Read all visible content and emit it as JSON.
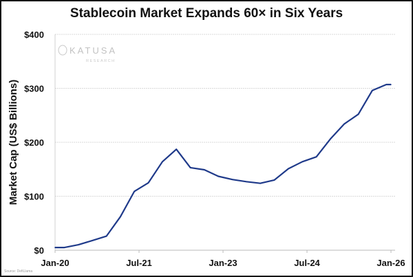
{
  "chart_data": {
    "type": "line",
    "title": "Stablecoin Market Expands 60× in Six Years",
    "xlabel": "",
    "ylabel": "Market Cap (US$ Billions)",
    "x_unit": "months since Jan-2020",
    "xlim": [
      0,
      72
    ],
    "ylim": [
      0,
      400
    ],
    "x_ticks": [
      {
        "value": 0,
        "label": "Jan-20"
      },
      {
        "value": 18,
        "label": "Jul-21"
      },
      {
        "value": 36,
        "label": "Jan-23"
      },
      {
        "value": 54,
        "label": "Jul-24"
      },
      {
        "value": 72,
        "label": "Jan-26"
      }
    ],
    "y_ticks": [
      {
        "value": 0,
        "label": "$0"
      },
      {
        "value": 100,
        "label": "$100"
      },
      {
        "value": 200,
        "label": "$200"
      },
      {
        "value": 300,
        "label": "$300"
      },
      {
        "value": 400,
        "label": "$400"
      }
    ],
    "grid": "horizontal",
    "series": [
      {
        "name": "Stablecoin Market Cap",
        "color": "#1f3a8a",
        "x": [
          0,
          2,
          5,
          8,
          11,
          14,
          17,
          20,
          23,
          26,
          29,
          32,
          35,
          38,
          41,
          44,
          47,
          50,
          53,
          56,
          59,
          62,
          65,
          68,
          71,
          72
        ],
        "y": [
          5,
          5,
          10,
          18,
          26,
          62,
          109,
          125,
          164,
          187,
          153,
          149,
          137,
          131,
          127,
          124,
          130,
          151,
          164,
          173,
          206,
          234,
          252,
          296,
          307,
          307
        ]
      }
    ],
    "source": "Source: DefiLlama",
    "logo": {
      "name": "KATUSA",
      "subtitle": "RESEARCH"
    }
  }
}
